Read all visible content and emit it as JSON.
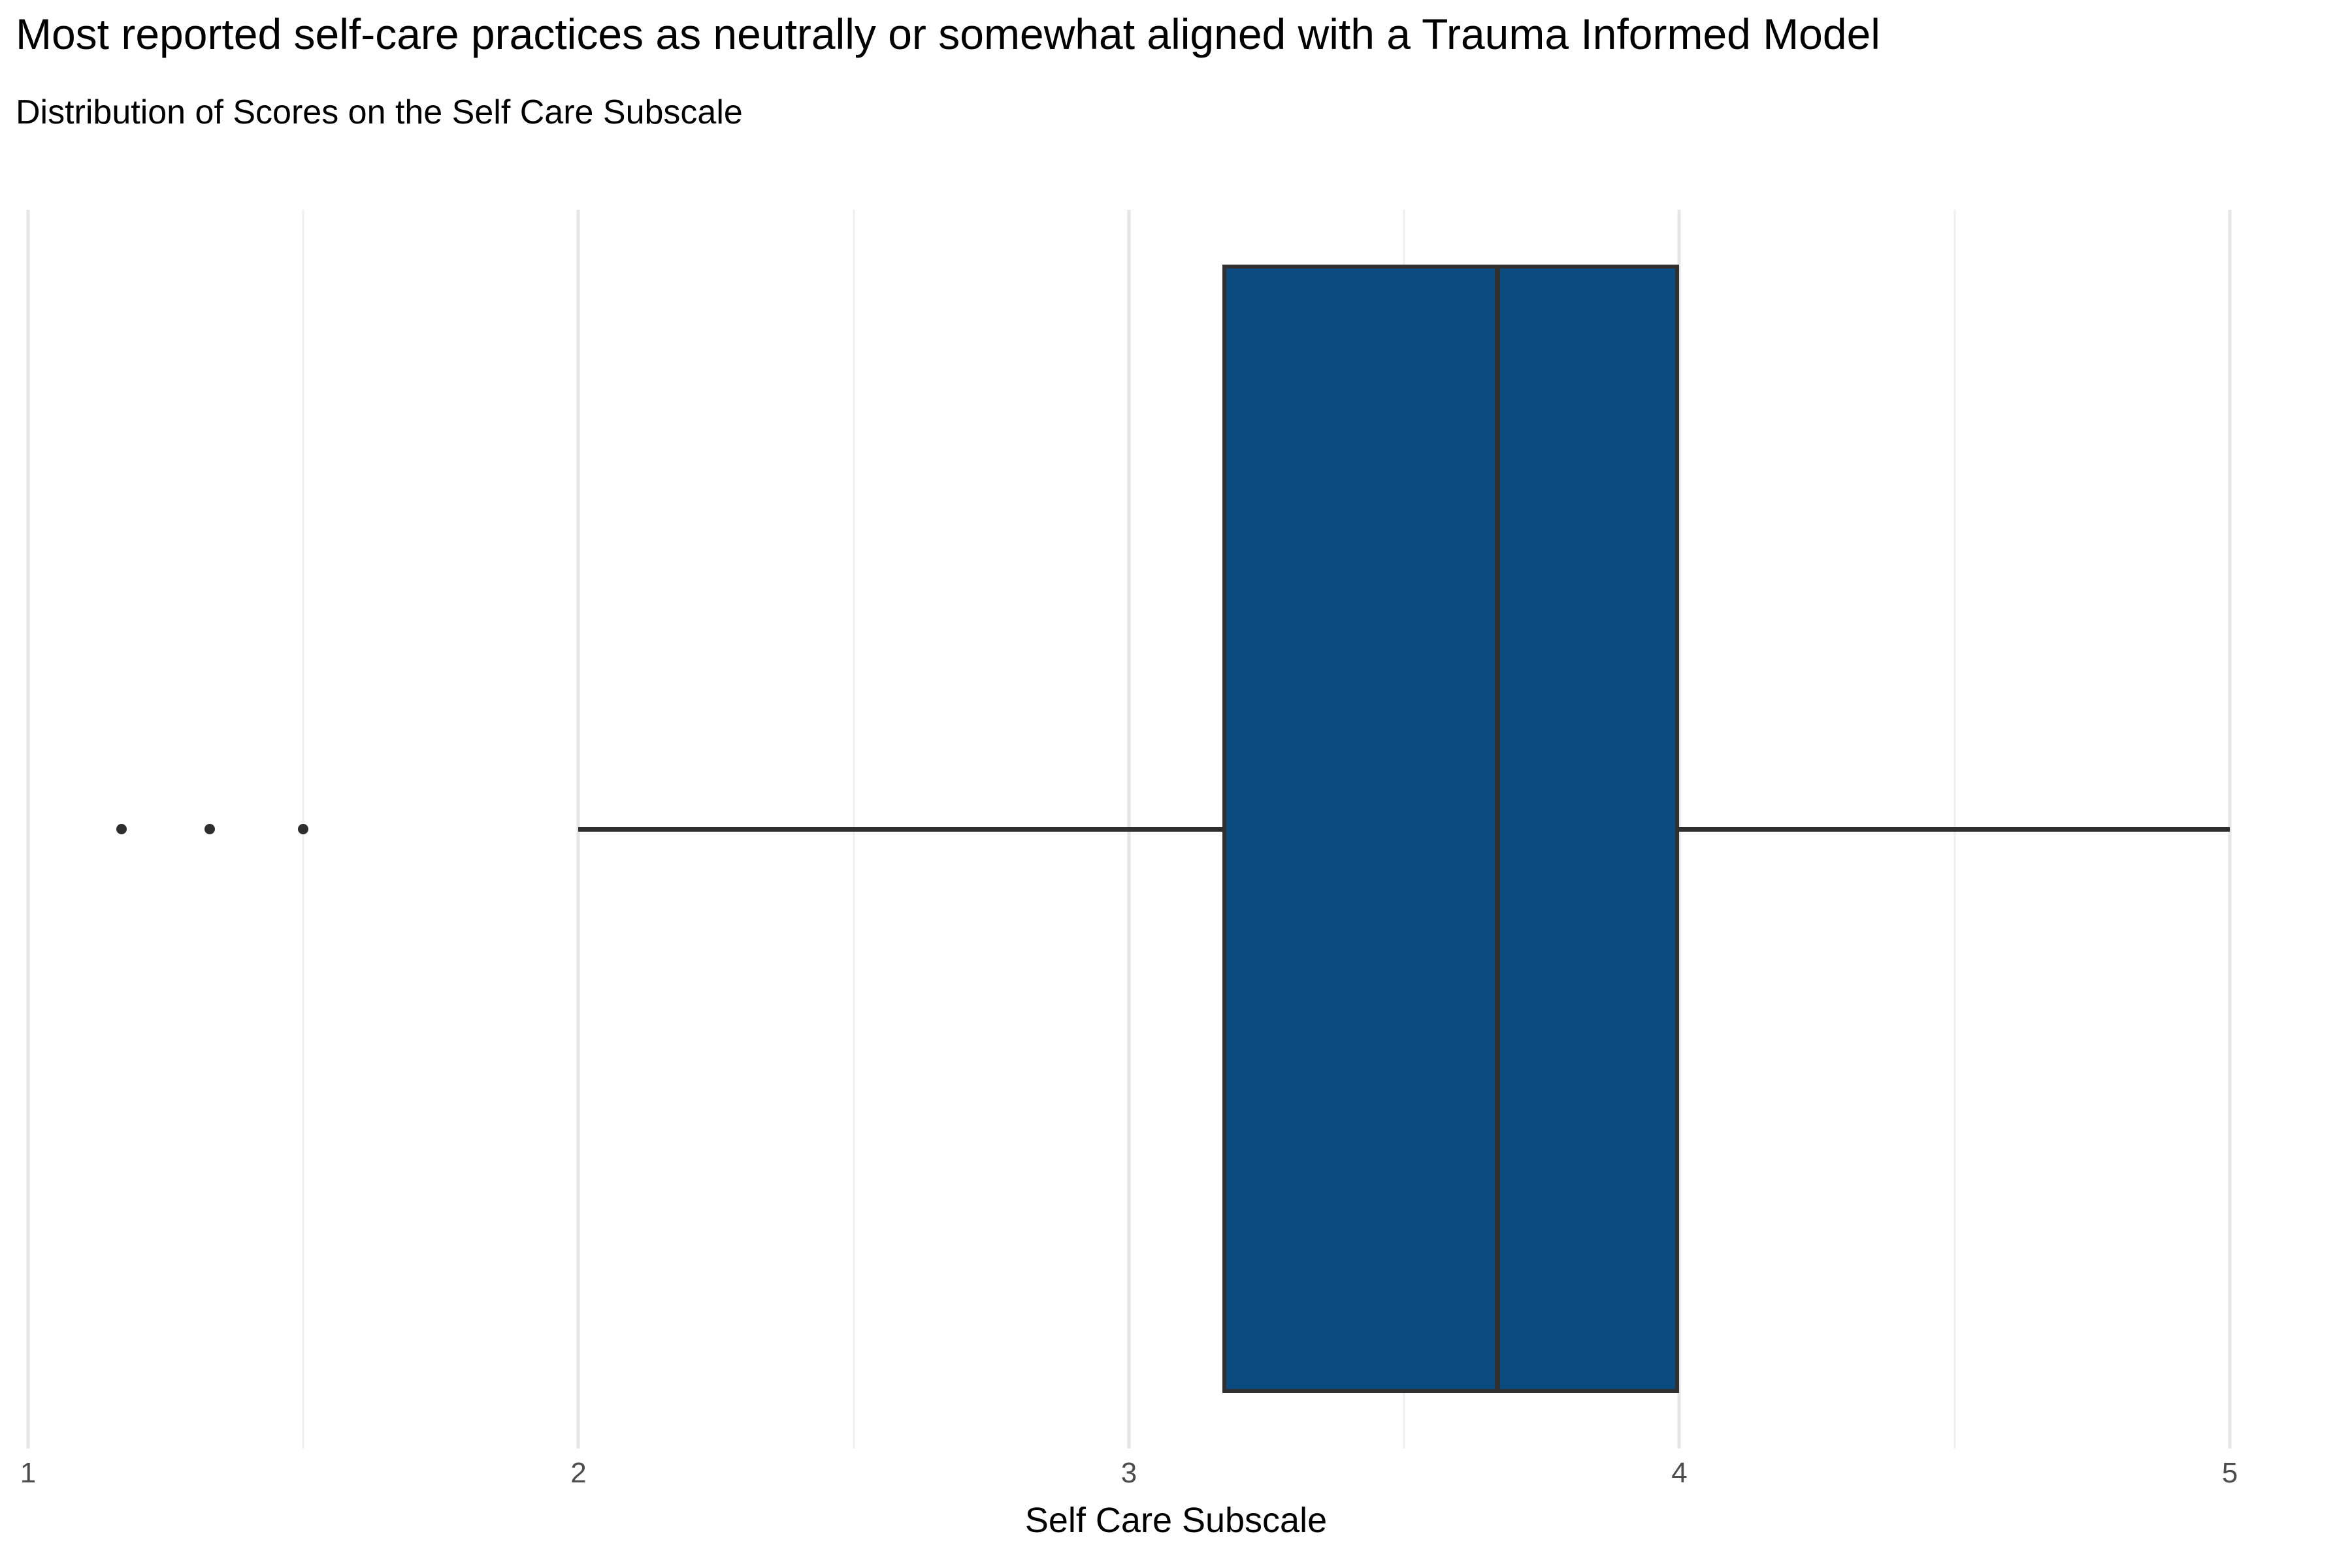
{
  "title": "Most reported self-care practices as neutrally or somewhat aligned with a Trauma Informed Model",
  "subtitle": "Distribution of Scores on the Self Care Subscale",
  "chart_data": {
    "type": "boxplot",
    "orientation": "horizontal",
    "title": "Most reported self-care practices as neutrally or somewhat aligned with a Trauma Informed Model",
    "subtitle": "Distribution of Scores on the Self Care Subscale",
    "xlabel": "Self Care Subscale",
    "ylabel": "",
    "xlim": [
      0.949,
      5.222
    ],
    "x_ticks": [
      1,
      2,
      3,
      4,
      5
    ],
    "x_minor_ticks": [
      1.5,
      2.5,
      3.5,
      4.5
    ],
    "grid": true,
    "legend": "none",
    "series": [
      {
        "name": "Self Care Subscale",
        "whisker_low": 2.0,
        "q1": 3.17,
        "median": 3.67,
        "q3": 4.0,
        "whisker_high": 5.0,
        "outliers": [
          1.17,
          1.33,
          1.5
        ]
      }
    ],
    "colors": {
      "box_fill": "#0b4b80",
      "box_border": "#303030",
      "median_line": "#303030",
      "whisker": "#2e2e2e",
      "outlier": "#2e2e2e",
      "grid_major": "#e6e6e6",
      "grid_minor": "#efefef",
      "tick_label": "#4d4d4d",
      "text": "#000000",
      "background": "#ffffff"
    }
  }
}
